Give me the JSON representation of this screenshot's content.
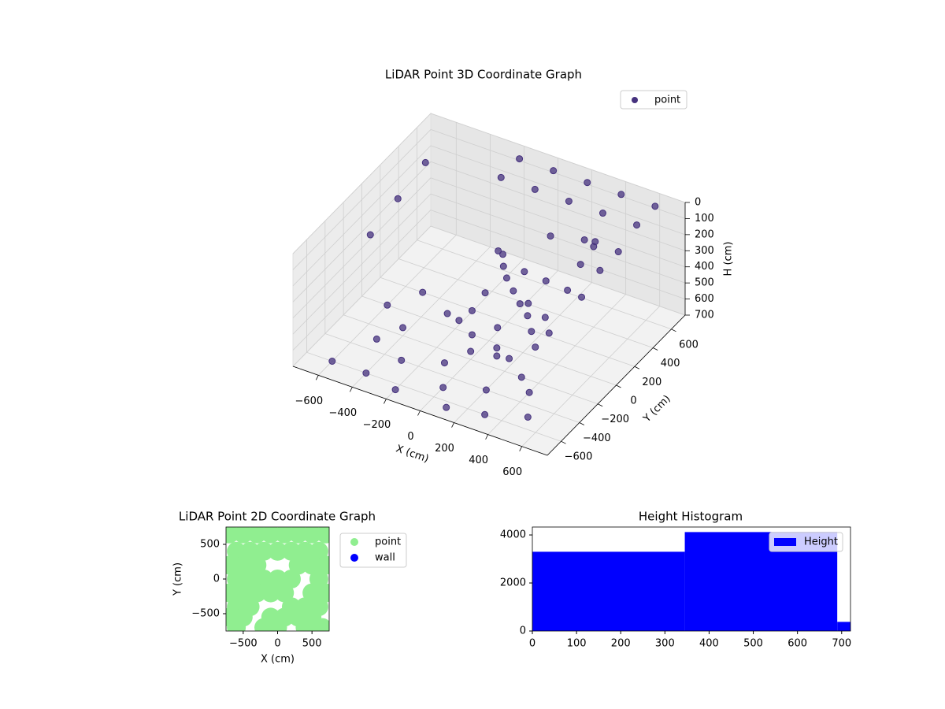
{
  "chart_data": [
    {
      "type": "scatter3d",
      "title": "LiDAR Point 3D Coordinate Graph",
      "x_label": "X (cm)",
      "y_label": "Y (cm)",
      "z_label": "H (cm)",
      "xlim": [
        -750,
        750
      ],
      "ylim": [
        -750,
        750
      ],
      "zlim": [
        0,
        700
      ],
      "z_inverted": true,
      "xticks": [
        {
          "value": -600,
          "label": "−600"
        },
        {
          "value": -400,
          "label": "−400"
        },
        {
          "value": -200,
          "label": "−200"
        },
        0,
        200,
        400,
        600
      ],
      "yticks": [
        {
          "value": -600,
          "label": "−600"
        },
        {
          "value": -400,
          "label": "−400"
        },
        {
          "value": -200,
          "label": "−200"
        },
        0,
        200,
        400,
        600
      ],
      "zticks": [
        0,
        100,
        200,
        300,
        400,
        500,
        600,
        700
      ],
      "grid": true,
      "legend": "upper right",
      "series": [
        {
          "name": "point",
          "color": "#46327e",
          "x": [
            -200,
            0,
            200,
            400,
            600,
            -200,
            0,
            200,
            400,
            600,
            600,
            600,
            600,
            400,
            200,
            -700,
            -700,
            -700,
            -600,
            -500,
            -400,
            -300,
            -200,
            -100,
            0,
            100,
            200,
            300,
            400,
            -600,
            -500,
            -300,
            -100,
            100,
            300,
            500,
            -400,
            0,
            0,
            0,
            20,
            50,
            100,
            150,
            200,
            250,
            300,
            100,
            200,
            300,
            350,
            400,
            420,
            150,
            250,
            300,
            -50,
            -100,
            -150,
            50,
            100,
            200
          ],
          "y": [
            700,
            700,
            700,
            700,
            700,
            500,
            500,
            500,
            500,
            500,
            300,
            100,
            -100,
            300,
            300,
            600,
            300,
            0,
            -600,
            -300,
            -600,
            -400,
            -650,
            -300,
            -500,
            -650,
            -400,
            -600,
            -300,
            0,
            200,
            100,
            0,
            -100,
            -200,
            -500,
            -200,
            -200,
            100,
            150,
            120,
            100,
            80,
            60,
            50,
            0,
            -50,
            200,
            250,
            300,
            350,
            400,
            380,
            150,
            150,
            100,
            50,
            0,
            -50,
            0,
            -100,
            -150
          ],
          "z": [
            50,
            50,
            50,
            50,
            50,
            50,
            50,
            50,
            50,
            50,
            100,
            100,
            150,
            100,
            150,
            200,
            250,
            300,
            700,
            700,
            700,
            700,
            700,
            700,
            700,
            700,
            700,
            700,
            700,
            700,
            700,
            700,
            700,
            700,
            700,
            700,
            650,
            650,
            200,
            250,
            300,
            350,
            400,
            450,
            500,
            550,
            600,
            350,
            400,
            450,
            300,
            200,
            150,
            500,
            550,
            600,
            450,
            550,
            600,
            600,
            650,
            650
          ]
        }
      ]
    },
    {
      "type": "scatter",
      "title": "LiDAR Point 2D Coordinate Graph",
      "x_label": "X (cm)",
      "y_label": "Y (cm)",
      "xlim": [
        -750,
        750
      ],
      "ylim": [
        -750,
        750
      ],
      "xticks": [
        {
          "value": -500,
          "label": "−500"
        },
        0,
        500
      ],
      "yticks": [
        {
          "value": -500,
          "label": "−500"
        },
        0,
        500
      ],
      "legend": "outside right",
      "series": [
        {
          "name": "point",
          "color": "#90ee90",
          "x": [
            -700,
            -500,
            -300,
            -100,
            100,
            300,
            500,
            700,
            -600,
            -400,
            -200,
            0,
            200,
            400,
            600,
            -700,
            -500,
            -300,
            300,
            500,
            700,
            -600,
            -400,
            -200,
            0,
            200,
            600,
            -700,
            -500,
            -300,
            -100,
            100,
            500,
            700,
            -600,
            -400,
            200,
            400,
            600,
            -700,
            -500,
            -100,
            100,
            300,
            500,
            -600,
            -200,
            0,
            400,
            650
          ],
          "y": [
            650,
            650,
            650,
            650,
            650,
            650,
            650,
            650,
            400,
            400,
            400,
            400,
            400,
            400,
            400,
            200,
            200,
            200,
            200,
            200,
            200,
            0,
            0,
            0,
            0,
            0,
            0,
            -200,
            -200,
            -200,
            -200,
            -200,
            -200,
            -200,
            -400,
            -400,
            -400,
            -400,
            -400,
            -550,
            -550,
            -550,
            -550,
            -550,
            -550,
            -700,
            -700,
            -700,
            -700,
            -700
          ]
        },
        {
          "name": "wall",
          "color": "#0000ff",
          "x": [],
          "y": []
        }
      ]
    },
    {
      "type": "histogram",
      "title": "Height Histogram",
      "xlim": [
        0,
        720
      ],
      "ylim": [
        0,
        4330
      ],
      "xticks": [
        0,
        100,
        200,
        300,
        400,
        500,
        600,
        700
      ],
      "yticks": [
        0,
        2000,
        4000
      ],
      "legend": "upper right",
      "series": [
        {
          "name": "Height",
          "color": "#0000ff",
          "bins": [
            0,
            345,
            690,
            720
          ],
          "counts": [
            3300,
            4120,
            380
          ]
        }
      ]
    }
  ]
}
